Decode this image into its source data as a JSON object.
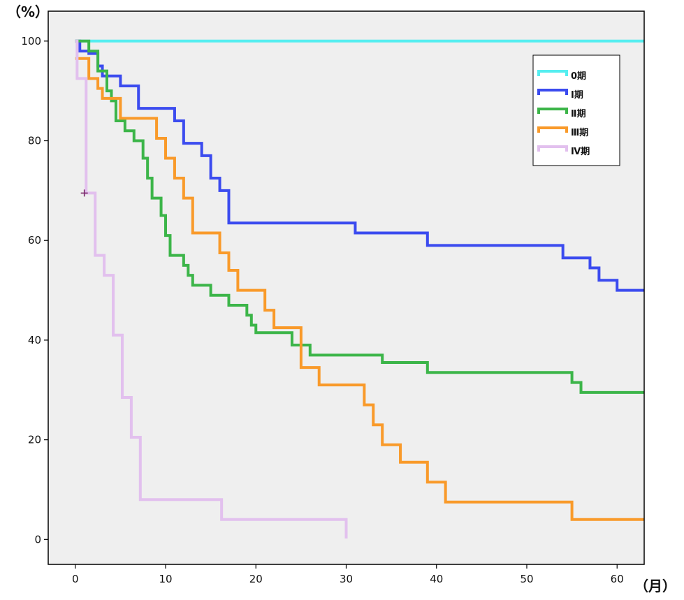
{
  "chart_data": {
    "type": "line",
    "step": true,
    "xlabel": "（月）",
    "ylabel": "（%）",
    "xlim": [
      -3,
      63
    ],
    "ylim": [
      -5,
      106
    ],
    "xticks": [
      "0",
      "10",
      "20",
      "30",
      "40",
      "50",
      "60"
    ],
    "yticks": [
      "0",
      "20",
      "40",
      "60",
      "80",
      "100"
    ],
    "grid": false,
    "legend": "top-right",
    "background": "#efefef",
    "series": [
      {
        "name": "0期",
        "color": "#55eef0",
        "points": [
          [
            0,
            100
          ],
          [
            63,
            100
          ]
        ]
      },
      {
        "name": "Ⅰ期",
        "color": "#3b4bef",
        "points": [
          [
            0,
            100
          ],
          [
            0.5,
            98
          ],
          [
            1.5,
            97.5
          ],
          [
            2.5,
            95
          ],
          [
            3,
            93
          ],
          [
            5,
            91
          ],
          [
            7,
            86.5
          ],
          [
            11,
            84
          ],
          [
            12,
            79.5
          ],
          [
            14,
            77
          ],
          [
            15,
            72.5
          ],
          [
            16,
            70
          ],
          [
            17,
            63.5
          ],
          [
            31,
            61.5
          ],
          [
            39,
            59
          ],
          [
            54,
            56.5
          ],
          [
            56,
            56.5
          ],
          [
            57,
            54.5
          ],
          [
            58,
            52
          ],
          [
            59,
            52
          ],
          [
            60,
            50
          ],
          [
            63,
            50
          ]
        ]
      },
      {
        "name": "Ⅱ期",
        "color": "#3cb549",
        "points": [
          [
            0,
            100
          ],
          [
            1,
            100
          ],
          [
            1.5,
            98
          ],
          [
            2.5,
            94
          ],
          [
            3.5,
            90
          ],
          [
            4,
            88
          ],
          [
            4.5,
            84
          ],
          [
            5.5,
            82
          ],
          [
            6.5,
            80
          ],
          [
            7.5,
            76.5
          ],
          [
            8,
            72.5
          ],
          [
            8.5,
            68.5
          ],
          [
            9.5,
            65
          ],
          [
            10,
            61
          ],
          [
            10.5,
            57
          ],
          [
            12,
            55
          ],
          [
            12.5,
            53
          ],
          [
            13,
            51
          ],
          [
            15,
            49
          ],
          [
            17,
            47
          ],
          [
            19,
            45
          ],
          [
            19.5,
            43
          ],
          [
            20,
            41.5
          ],
          [
            24,
            39
          ],
          [
            25,
            39
          ],
          [
            26,
            37
          ],
          [
            34,
            35.5
          ],
          [
            39,
            33.5
          ],
          [
            55,
            31.5
          ],
          [
            56,
            29.5
          ],
          [
            63,
            29.5
          ]
        ]
      },
      {
        "name": "Ⅲ期",
        "color": "#f99a2a",
        "points": [
          [
            0,
            96.5
          ],
          [
            1.5,
            92.5
          ],
          [
            2.5,
            90.5
          ],
          [
            3,
            88.5
          ],
          [
            5,
            84.5
          ],
          [
            9,
            80.5
          ],
          [
            10,
            76.5
          ],
          [
            11,
            72.5
          ],
          [
            12,
            68.5
          ],
          [
            13,
            61.5
          ],
          [
            16,
            57.5
          ],
          [
            17,
            54
          ],
          [
            18,
            50
          ],
          [
            21,
            46
          ],
          [
            22,
            42.5
          ],
          [
            25,
            34.5
          ],
          [
            27,
            31
          ],
          [
            32,
            27
          ],
          [
            33,
            23
          ],
          [
            34,
            19
          ],
          [
            36,
            15.5
          ],
          [
            39,
            11.5
          ],
          [
            41,
            7.5
          ],
          [
            55,
            4
          ],
          [
            63,
            4
          ]
        ]
      },
      {
        "name": "Ⅳ期",
        "color": "#e2c0ee",
        "points": [
          [
            0,
            100
          ],
          [
            0.2,
            92.5
          ],
          [
            1,
            92.5
          ],
          [
            1.2,
            69.5
          ],
          [
            2,
            69.5
          ],
          [
            2.2,
            57
          ],
          [
            3,
            57
          ],
          [
            3.2,
            53
          ],
          [
            4,
            53
          ],
          [
            4.2,
            41
          ],
          [
            5,
            41
          ],
          [
            5.2,
            28.5
          ],
          [
            6,
            28.5
          ],
          [
            6.2,
            20.5
          ],
          [
            7,
            20.5
          ],
          [
            7.2,
            8
          ],
          [
            16,
            8
          ],
          [
            16.2,
            4
          ],
          [
            30,
            4
          ],
          [
            30,
            0.2
          ]
        ],
        "censor": [
          [
            1,
            69.5
          ]
        ]
      }
    ]
  }
}
